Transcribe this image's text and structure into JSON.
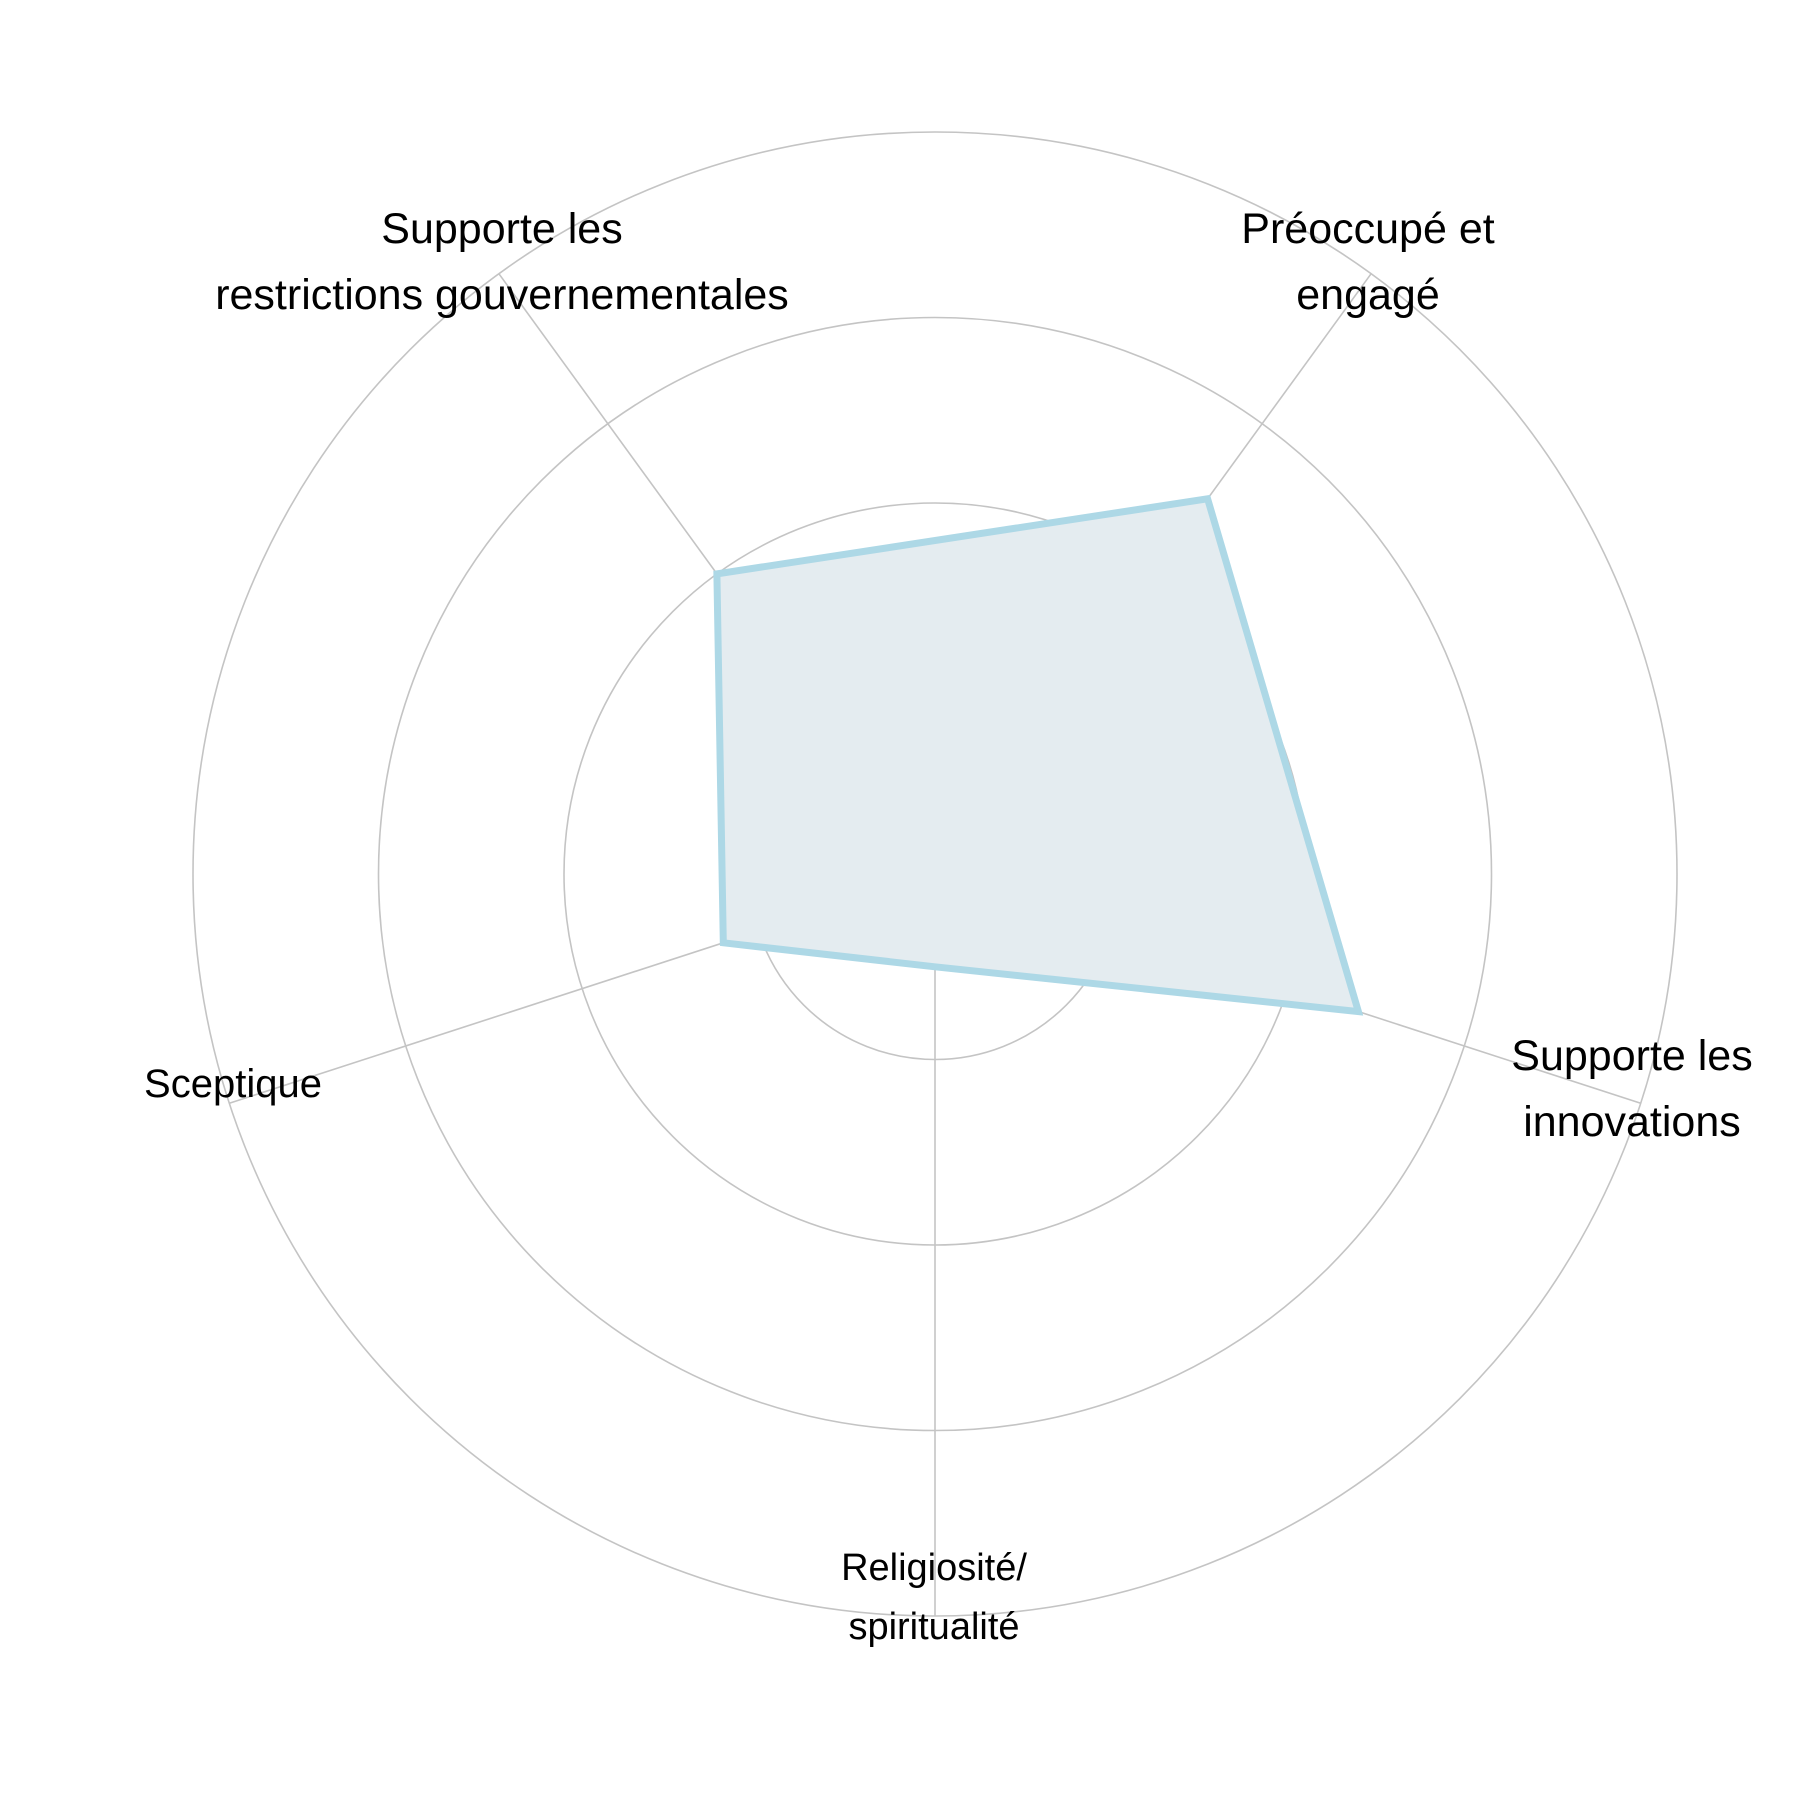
{
  "chart_data": {
    "type": "radar",
    "title": "",
    "axes": [
      {
        "label_lines": [
          "Préoccupé et",
          "engagé"
        ],
        "value": 2.5
      },
      {
        "label_lines": [
          "Supporte les",
          "innovations"
        ],
        "value": 2.4
      },
      {
        "label_lines": [
          "Religiosité/",
          "spiritualité"
        ],
        "value": 0.5
      },
      {
        "label_lines": [
          "Sceptique"
        ],
        "value": 1.2
      },
      {
        "label_lines": [
          "Supporte les",
          "restrictions gouvernementales"
        ],
        "value": 2.0
      }
    ],
    "r_range": [
      0,
      4
    ],
    "grid_rings": [
      1,
      2,
      3,
      4
    ],
    "rings_drawn_to": 4,
    "grid": true,
    "legend": "none",
    "colors": {
      "series_line": "#add8e6",
      "series_fill": "#e4ecf0",
      "grid": "#c4c4c4",
      "text": "#000000"
    }
  }
}
